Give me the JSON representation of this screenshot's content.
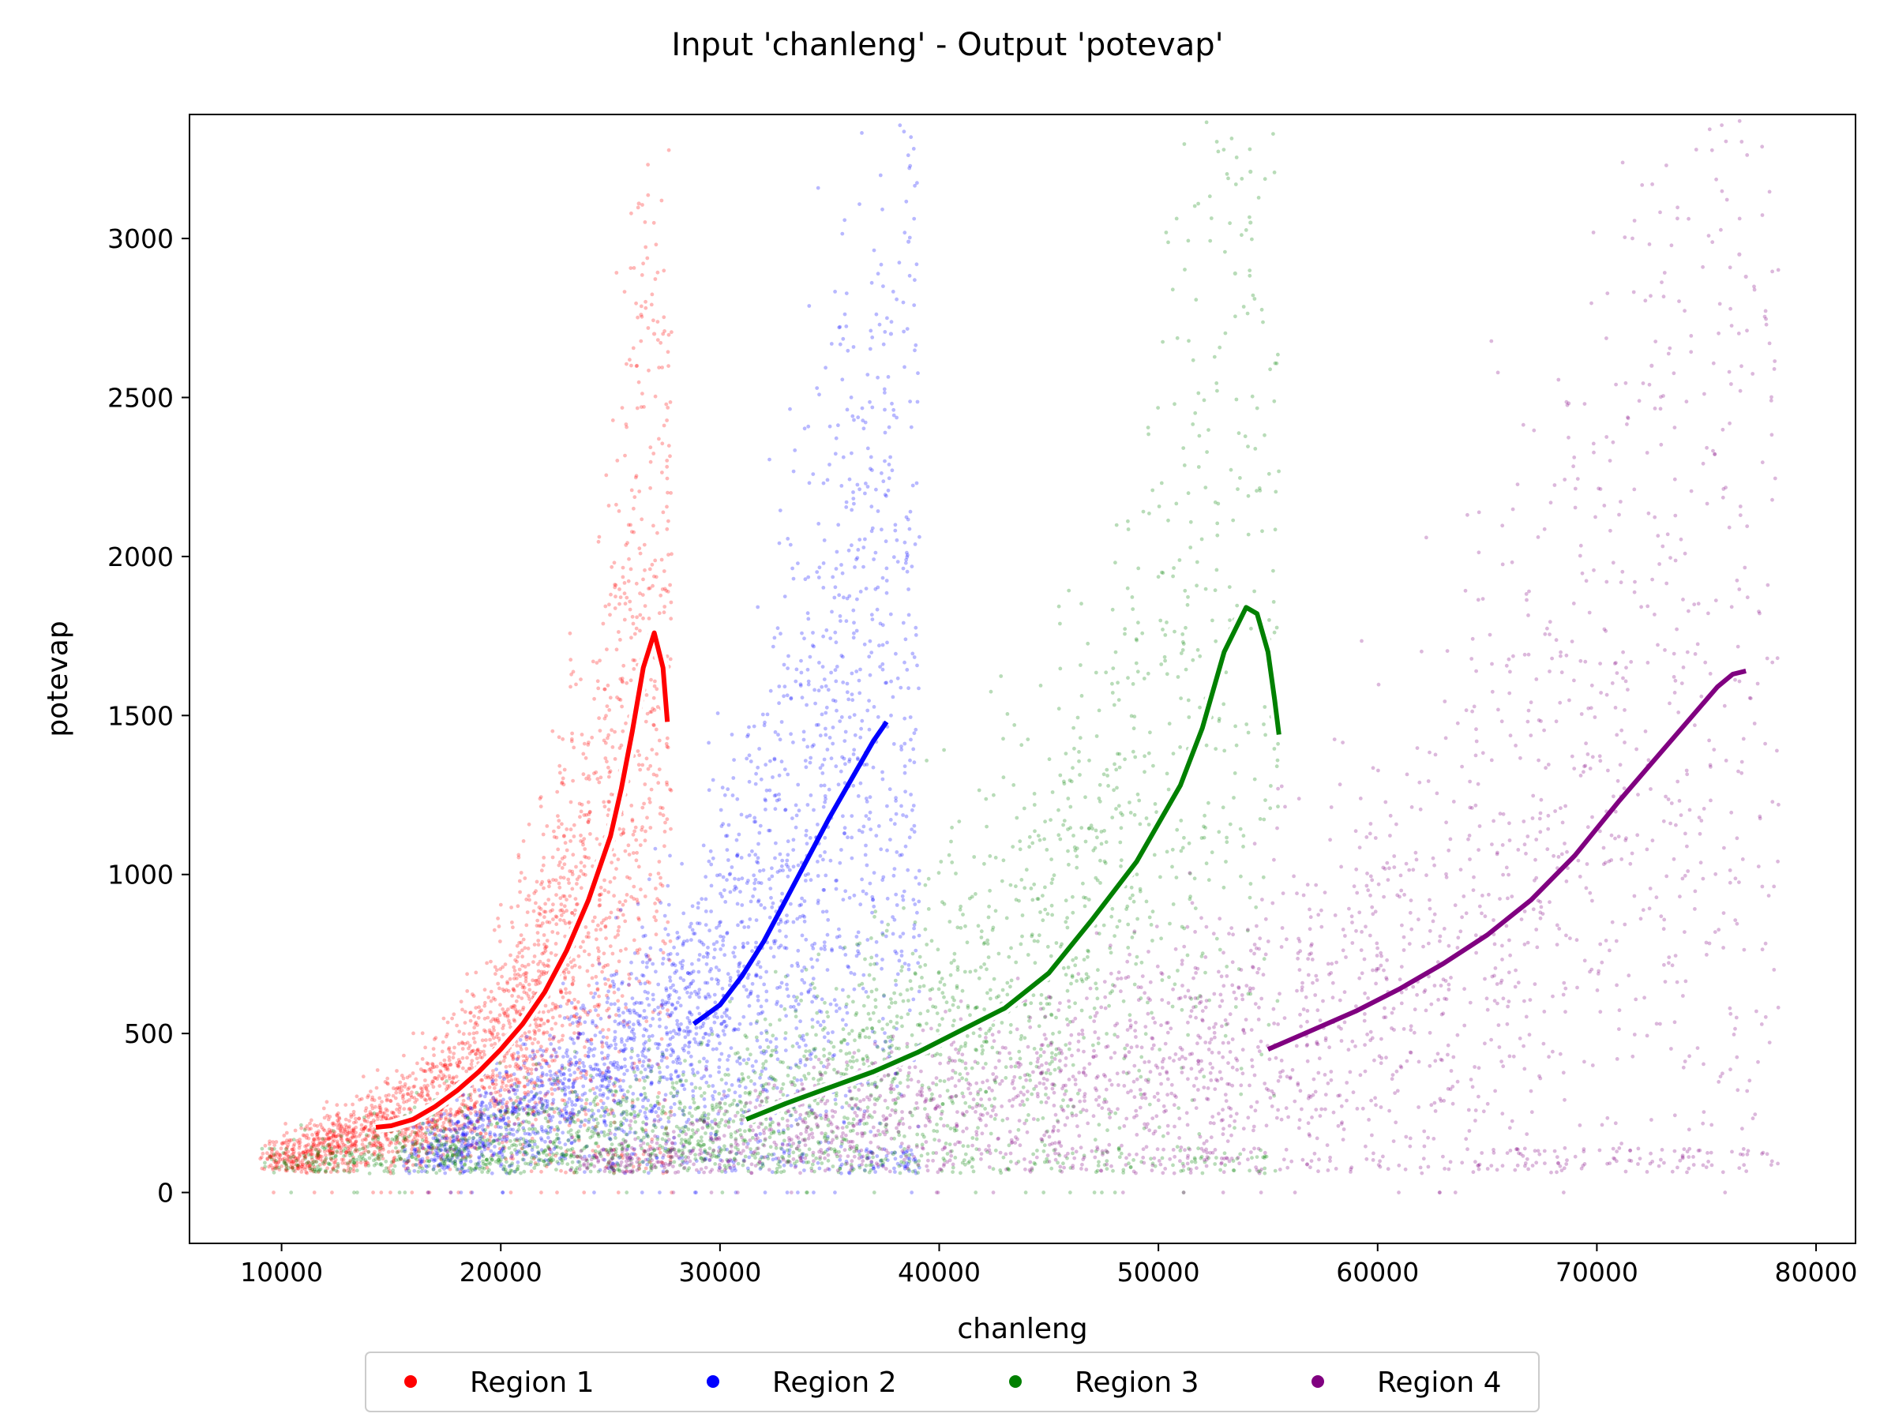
{
  "chart_data": {
    "type": "scatter",
    "title": "Input 'chanleng' - Output 'potevap'",
    "xlabel": "chanleng",
    "ylabel": "potevap",
    "xlim": [
      5800,
      81800
    ],
    "ylim": [
      -160,
      3390
    ],
    "x_ticks": [
      10000,
      20000,
      30000,
      40000,
      50000,
      60000,
      70000,
      80000
    ],
    "y_ticks": [
      0,
      500,
      1000,
      1500,
      2000,
      2500,
      3000
    ],
    "grid": false,
    "legend_position": "bottom-center",
    "series": [
      {
        "name": "Region 1",
        "color": "#ff0000",
        "point_cloud": {
          "x_range": [
            9000,
            27800
          ],
          "typical_spread": 250,
          "spread_growth": "widens toward the right end",
          "max_outliers": [
            [
              26300,
              3110
            ],
            [
              26400,
              2760
            ],
            [
              27000,
              2700
            ]
          ]
        },
        "trend_line": {
          "style": "white-outlined",
          "x": [
            14300,
            15000,
            16000,
            17000,
            18000,
            19000,
            20000,
            21000,
            22000,
            23000,
            24000,
            25000,
            25500,
            26000,
            26500,
            27000,
            27400,
            27600
          ],
          "y": [
            205,
            210,
            230,
            270,
            320,
            380,
            450,
            530,
            630,
            760,
            920,
            1120,
            1270,
            1450,
            1650,
            1760,
            1650,
            1480
          ]
        }
      },
      {
        "name": "Region 2",
        "color": "#0000ff",
        "point_cloud": {
          "x_range": [
            15500,
            39100
          ],
          "typical_spread": 350,
          "spread_growth": "widens toward the right end",
          "max_outliers": [
            [
              38600,
              2990
            ],
            [
              37800,
              2700
            ]
          ]
        },
        "trend_line": {
          "style": "solid",
          "x": [
            28800,
            30000,
            31000,
            32000,
            33000,
            34000,
            35000,
            36000,
            37000,
            37600
          ],
          "y": [
            530,
            590,
            680,
            790,
            920,
            1050,
            1180,
            1300,
            1420,
            1480
          ]
        }
      },
      {
        "name": "Region 3",
        "color": "#008000",
        "point_cloud": {
          "x_range": [
            9000,
            55500
          ],
          "typical_spread": 350,
          "spread_growth": "widens toward the right end",
          "max_outliers": [
            [
              54200,
              3210
            ],
            [
              54200,
              3050
            ],
            [
              53500,
              2890
            ]
          ]
        },
        "trend_line": {
          "style": "white-outlined",
          "x": [
            31200,
            33000,
            35000,
            37000,
            39000,
            41000,
            43000,
            45000,
            47000,
            49000,
            51000,
            52000,
            53000,
            54000,
            54500,
            55000,
            55300,
            55500
          ],
          "y": [
            230,
            280,
            330,
            380,
            440,
            510,
            580,
            690,
            860,
            1040,
            1280,
            1460,
            1700,
            1840,
            1820,
            1700,
            1550,
            1440
          ]
        }
      },
      {
        "name": "Region 4",
        "color": "#800080",
        "point_cloud": {
          "x_range": [
            23000,
            78300
          ],
          "typical_spread": 400,
          "spread_growth": "widens toward the right end",
          "max_outliers": [
            [
              76500,
              2950
            ],
            [
              76800,
              2880
            ],
            [
              72500,
              2600
            ]
          ]
        },
        "trend_line": {
          "style": "solid",
          "x": [
            55000,
            57000,
            59000,
            61000,
            63000,
            65000,
            67000,
            69000,
            71000,
            72500,
            74000,
            75500,
            76200,
            76800
          ],
          "y": [
            450,
            510,
            570,
            640,
            720,
            810,
            920,
            1060,
            1230,
            1350,
            1470,
            1590,
            1630,
            1640
          ]
        }
      }
    ]
  }
}
